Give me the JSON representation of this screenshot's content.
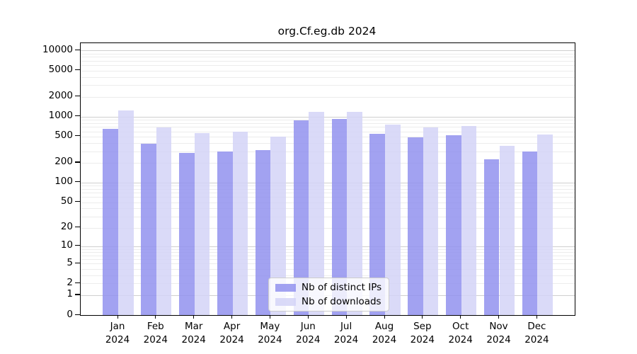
{
  "chart_data": {
    "type": "bar",
    "title": "org.Cf.eg.db 2024",
    "categories": [
      "Jan",
      "Feb",
      "Mar",
      "Apr",
      "May",
      "Jun",
      "Jul",
      "Aug",
      "Sep",
      "Oct",
      "Nov",
      "Dec"
    ],
    "year_label": "2024",
    "series": [
      {
        "name": "Nb of distinct IPs",
        "color": "#9292ee",
        "values": [
          650,
          385,
          285,
          295,
          315,
          870,
          920,
          550,
          490,
          520,
          225,
          295
        ]
      },
      {
        "name": "Nb of downloads",
        "color": "#d3d3f7",
        "values": [
          1250,
          680,
          570,
          600,
          500,
          1180,
          1180,
          750,
          680,
          720,
          365,
          540
        ]
      }
    ],
    "y_scale": "log10(1+v)",
    "y_ticks": [
      0,
      1,
      2,
      5,
      10,
      20,
      50,
      100,
      200,
      500,
      1000,
      2000,
      5000,
      10000
    ],
    "ylim": [
      0,
      10000
    ],
    "xlabel": "",
    "ylabel": "",
    "grid": "on",
    "legend_position": "bottom-center"
  }
}
